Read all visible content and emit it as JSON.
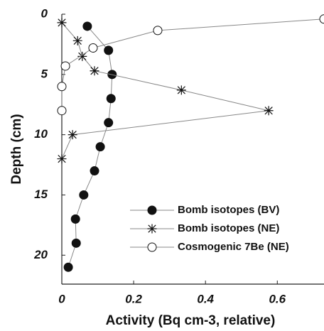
{
  "chart_data": {
    "type": "line",
    "x_label": "Activity (Bq cm-3, relative)",
    "y_label": "Depth (cm)",
    "xlim": [
      0,
      0.73
    ],
    "xticks": [
      0,
      0.2,
      0.4,
      0.6
    ],
    "ylim": [
      0,
      22.4
    ],
    "yticks": [
      0,
      5,
      10,
      15,
      20
    ],
    "y_inverted": true,
    "legend_position": "lower right",
    "series": [
      {
        "name": "Bomb isotopes (BV)",
        "color": "#111111",
        "marker": "filled-circle",
        "x": [
          0.071,
          0.13,
          0.14,
          0.137,
          0.13,
          0.107,
          0.091,
          0.061,
          0.038,
          0.04,
          0.018
        ],
        "values": [
          1,
          3,
          5,
          7,
          9,
          11,
          13,
          15,
          17,
          19,
          21
        ]
      },
      {
        "name": "Bomb isotopes (NE)",
        "color": "#111111",
        "marker": "star",
        "x": [
          0,
          0.044,
          0.057,
          0.091,
          0.333,
          0.576,
          0.03,
          0
        ],
        "values": [
          0.7,
          2.2,
          3.5,
          4.7,
          6.3,
          8,
          10,
          12
        ]
      },
      {
        "name": "Cosmogenic 7Be (NE)",
        "color": "#111111",
        "marker": "open-circle",
        "x": [
          0.73,
          0.267,
          0.087,
          0.01,
          0,
          0
        ],
        "values": [
          0.4,
          1.35,
          2.8,
          4.3,
          6,
          8
        ]
      }
    ]
  }
}
